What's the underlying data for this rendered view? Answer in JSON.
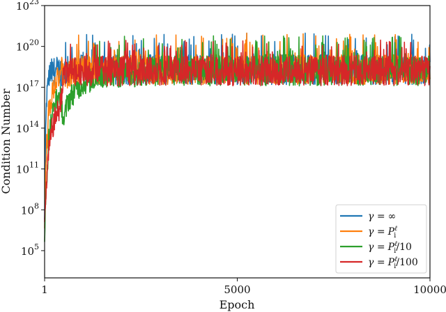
{
  "chart_data": {
    "type": "line",
    "title": "",
    "xlabel": "Epoch",
    "ylabel": "Condition Number",
    "xscale": "linear",
    "yscale": "log",
    "xlim": [
      1,
      10000
    ],
    "ylim_log10": [
      3,
      23
    ],
    "xticks": [
      1,
      5000,
      10000
    ],
    "xtick_labels": [
      "1",
      "5000",
      "10000"
    ],
    "yticks_log10": [
      5,
      8,
      11,
      14,
      17,
      20,
      23
    ],
    "ytick_labels": [
      "10^5",
      "10^8",
      "10^11",
      "10^14",
      "10^17",
      "10^20",
      "10^23"
    ],
    "grid": false,
    "legend_position": "lower right",
    "series": [
      {
        "name": "γ = ∞",
        "color": "#1f77b4",
        "description": "Rises fastest from ~1e7 at epoch 1 to ~1e18 by epoch ~150, then noisy plateau with band ~1e17–1e19 and spikes up to ~1e21",
        "x": [
          1,
          20,
          50,
          100,
          150,
          300,
          600,
          1000,
          2000,
          3000,
          4000,
          5000,
          6000,
          7000,
          8000,
          9000,
          10000
        ],
        "log10_y_center": [
          7.0,
          12.0,
          16.0,
          17.5,
          18.0,
          18.2,
          18.2,
          18.3,
          18.3,
          18.3,
          18.3,
          18.3,
          18.3,
          18.3,
          18.3,
          18.3,
          18.3
        ],
        "log10_y_band": [
          [
            17.0,
            19.5
          ]
        ],
        "log10_y_max_spike": 21.0
      },
      {
        "name": "γ = P_i^ℓ",
        "color": "#ff7f0e",
        "description": "Rises from ~1e7 to ~1e17 by epoch ~300, noisy plateau ~1e17–1e19.5 with spikes to ~1e21",
        "x": [
          1,
          50,
          100,
          200,
          300,
          500,
          1000,
          2000,
          3000,
          4000,
          5000,
          6000,
          7000,
          8000,
          9000,
          10000
        ],
        "log10_y_center": [
          7.0,
          12.5,
          15.0,
          16.5,
          17.5,
          18.0,
          18.2,
          18.3,
          18.3,
          18.3,
          18.3,
          18.3,
          18.3,
          18.3,
          18.3,
          18.3
        ],
        "log10_y_band": [
          [
            17.0,
            19.5
          ]
        ],
        "log10_y_max_spike": 21.0
      },
      {
        "name": "γ = P_i^ℓ/10",
        "color": "#2ca02c",
        "description": "Rises from ~1e6 with a dip near epoch ~500 to ~1e14, reaches plateau ~1e17–1e19 after epoch ~1000, spikes to ~1e20.8",
        "x": [
          1,
          100,
          200,
          300,
          400,
          500,
          600,
          800,
          1000,
          1500,
          2000,
          3000,
          4000,
          5000,
          6000,
          7000,
          8000,
          9000,
          10000
        ],
        "log10_y_center": [
          6.5,
          13.0,
          15.0,
          16.0,
          16.5,
          14.5,
          16.0,
          16.8,
          17.3,
          17.8,
          18.0,
          18.2,
          18.2,
          18.2,
          18.2,
          18.2,
          18.2,
          18.2,
          18.2
        ],
        "log10_y_band": [
          [
            16.8,
            19.5
          ]
        ],
        "log10_y_max_spike": 20.8
      },
      {
        "name": "γ = P_i^ℓ/100",
        "color": "#d62728",
        "description": "Slowest rise from ~1e6.5, reaches ~1e15 by epoch ~400 and plateau ~1e17–1e19 from epoch ~500, spikes to ~1e20.5",
        "x": [
          1,
          50,
          100,
          200,
          300,
          400,
          500,
          1000,
          2000,
          3000,
          4000,
          5000,
          6000,
          7000,
          8000,
          9000,
          10000
        ],
        "log10_y_center": [
          6.5,
          10.0,
          12.0,
          14.0,
          15.0,
          15.5,
          18.0,
          18.2,
          18.2,
          18.2,
          18.2,
          18.2,
          18.2,
          18.2,
          18.2,
          18.2,
          18.2
        ],
        "log10_y_band": [
          [
            17.0,
            19.3
          ]
        ],
        "log10_y_max_spike": 20.5
      }
    ]
  },
  "axes": {
    "xlabel": "Epoch",
    "ylabel": "Condition Number",
    "xticks": [
      {
        "label": "1",
        "value": 1
      },
      {
        "label": "5000",
        "value": 5000
      },
      {
        "label": "10000",
        "value": 10000
      }
    ],
    "yticks": [
      {
        "base": "10",
        "exp": "5",
        "value": 5
      },
      {
        "base": "10",
        "exp": "8",
        "value": 8
      },
      {
        "base": "10",
        "exp": "11",
        "value": 11
      },
      {
        "base": "10",
        "exp": "14",
        "value": 14
      },
      {
        "base": "10",
        "exp": "17",
        "value": 17
      },
      {
        "base": "10",
        "exp": "20",
        "value": 20
      },
      {
        "base": "10",
        "exp": "23",
        "value": 23
      }
    ]
  },
  "legend": {
    "items": [
      {
        "gamma": "γ",
        "eq": "=",
        "rhs": "∞",
        "sup": "",
        "sub": "",
        "tail": "",
        "color": "#1f77b4"
      },
      {
        "gamma": "γ",
        "eq": "=",
        "rhs": "P",
        "sup": "ℓ",
        "sub": "i",
        "tail": "",
        "color": "#ff7f0e"
      },
      {
        "gamma": "γ",
        "eq": "=",
        "rhs": "P",
        "sup": "ℓ",
        "sub": "i",
        "tail": "/10",
        "color": "#2ca02c"
      },
      {
        "gamma": "γ",
        "eq": "=",
        "rhs": "P",
        "sup": "ℓ",
        "sub": "i",
        "tail": "/100",
        "color": "#d62728"
      }
    ]
  }
}
